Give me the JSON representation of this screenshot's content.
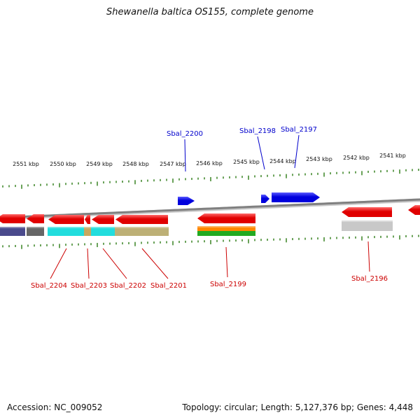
{
  "title": "Shewanella baltica OS155, complete genome",
  "footer": {
    "accession": "Accession: NC_009052",
    "summary": "Topology: circular; Length: 5,127,376 bp; Genes: 4,448"
  },
  "colors": {
    "backbone": "#808080",
    "tick": "#2a7a12",
    "reverse_gene": "#e00000",
    "forward_gene": "#0000dd",
    "reverse_label": "#cc0000",
    "forward_label": "#0000cc",
    "cog_navy": "#4a4a8c",
    "cog_darkgray": "#666666",
    "cog_cyan": "#22dddd",
    "cog_tan": "#c8a860",
    "cog_khaki": "#bdb076",
    "cog_orange": "#ff8800",
    "cog_green": "#22aa22",
    "cog_lightgray": "#c8c8c8"
  },
  "kbp_ticks": [
    "2551 kbp",
    "2550 kbp",
    "2549 kbp",
    "2548 kbp",
    "2547 kbp",
    "2546 kbp",
    "2545 kbp",
    "2544 kbp",
    "2543 kbp",
    "2542 kbp",
    "2541 kbp"
  ],
  "genes": [
    {
      "label": "Sbal_2204",
      "strand": "reverse"
    },
    {
      "label": "Sbal_2203",
      "strand": "reverse"
    },
    {
      "label": "Sbal_2202",
      "strand": "reverse"
    },
    {
      "label": "Sbal_2201",
      "strand": "reverse"
    },
    {
      "label": "Sbal_2200",
      "strand": "forward"
    },
    {
      "label": "Sbal_2199",
      "strand": "reverse"
    },
    {
      "label": "Sbal_2198",
      "strand": "forward"
    },
    {
      "label": "Sbal_2197",
      "strand": "forward"
    },
    {
      "label": "Sbal_2196",
      "strand": "reverse"
    }
  ]
}
